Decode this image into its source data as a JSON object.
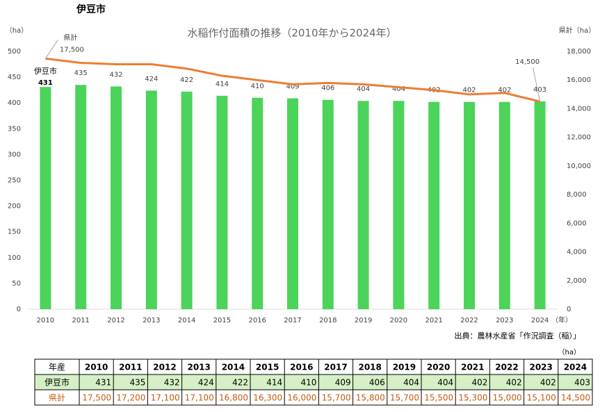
{
  "heading": "伊豆市",
  "chart_data": {
    "type": "bar_line",
    "title": "水稲作付面積の推移（2010年から2024年）",
    "y_label": "（ha）",
    "y2_label": "県計（ha）",
    "x_unit": "（年）",
    "source": "出典：農林水産省「作況調査（稲）」",
    "categories": [
      "2010",
      "2011",
      "2012",
      "2013",
      "2014",
      "2015",
      "2016",
      "2017",
      "2018",
      "2019",
      "2020",
      "2021",
      "2022",
      "2023",
      "2024"
    ],
    "series": [
      {
        "name": "伊豆市",
        "type": "bar",
        "color": "#4cd35a",
        "values": [
          431,
          435,
          432,
          424,
          422,
          414,
          410,
          409,
          406,
          404,
          404,
          402,
          402,
          402,
          403
        ]
      },
      {
        "name": "県計",
        "type": "line",
        "axis": "y2",
        "color": "#ed7d31",
        "values": [
          17500,
          17200,
          17100,
          17100,
          16800,
          16300,
          16000,
          15700,
          15800,
          15700,
          15500,
          15300,
          15000,
          15100,
          14500
        ],
        "value_labels": [
          "17,500",
          null,
          null,
          null,
          null,
          null,
          null,
          null,
          null,
          null,
          null,
          null,
          null,
          null,
          "14,500"
        ]
      }
    ],
    "ylim": [
      0,
      500
    ],
    "yticks": [
      0,
      50,
      100,
      150,
      200,
      250,
      300,
      350,
      400,
      450,
      500
    ],
    "y2lim": [
      0,
      18000
    ],
    "y2ticks": [
      0,
      {
        "value": 2000,
        "label": "2,000"
      },
      {
        "value": 4000,
        "label": "4,000"
      },
      {
        "value": 6000,
        "label": "6,000"
      },
      {
        "value": 8000,
        "label": "8,000"
      },
      {
        "value": 10000,
        "label": "10,000"
      },
      {
        "value": 12000,
        "label": "12,000"
      },
      {
        "value": 14000,
        "label": "14,000"
      },
      {
        "value": 16000,
        "label": "16,000"
      },
      {
        "value": 18000,
        "label": "18,000"
      }
    ]
  },
  "table": {
    "unit": "（ha）",
    "corner": "年産",
    "prefecture_row": [
      "17,500",
      "17,200",
      "17,100",
      "17,100",
      "16,800",
      "16,300",
      "16,000",
      "15,700",
      "15,800",
      "15,700",
      "15,500",
      "15,300",
      "15,000",
      "15,100",
      "14,500"
    ]
  }
}
